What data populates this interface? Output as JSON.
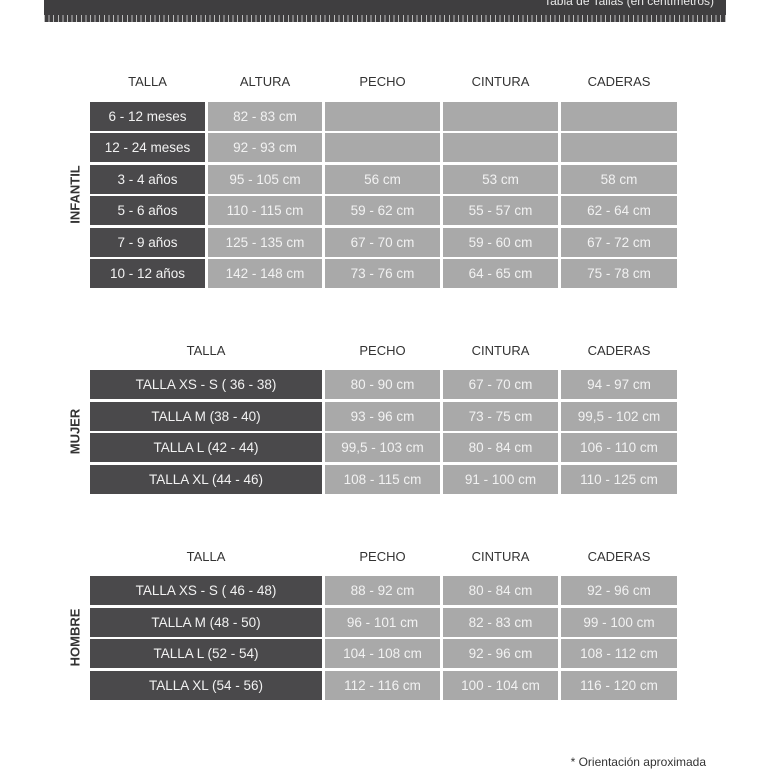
{
  "header": {
    "title": "Tabla de Tallas (en centímetros)"
  },
  "colors": {
    "dark_cell": "#4a494b",
    "light_cell": "#a9a9a9",
    "header_bar": "#3f3e40"
  },
  "infantil": {
    "label": "INFANTIL",
    "columns": [
      "TALLA",
      "ALTURA",
      "PECHO",
      "CINTURA",
      "CADERAS"
    ],
    "rows": [
      [
        "6 - 12 meses",
        "82 - 83 cm",
        "",
        "",
        ""
      ],
      [
        "12 - 24 meses",
        "92 - 93 cm",
        "",
        "",
        ""
      ],
      [
        "3 - 4 años",
        "95 - 105 cm",
        "56 cm",
        "53 cm",
        "58 cm"
      ],
      [
        "5 - 6 años",
        "110 - 115 cm",
        "59 - 62 cm",
        "55 - 57 cm",
        "62 - 64 cm"
      ],
      [
        "7 - 9 años",
        "125 - 135 cm",
        "67 - 70 cm",
        "59 - 60 cm",
        "67 - 72 cm"
      ],
      [
        "10 - 12 años",
        "142 - 148 cm",
        "73 - 76 cm",
        "64 - 65 cm",
        "75 - 78 cm"
      ]
    ]
  },
  "mujer": {
    "label": "MUJER",
    "columns": [
      "TALLA",
      "PECHO",
      "CINTURA",
      "CADERAS"
    ],
    "rows": [
      [
        "TALLA XS - S ( 36 - 38)",
        "80 - 90 cm",
        "67 - 70 cm",
        "94 - 97 cm"
      ],
      [
        "TALLA M (38 - 40)",
        "93 - 96 cm",
        "73 - 75 cm",
        "99,5 - 102 cm"
      ],
      [
        "TALLA L (42 - 44)",
        "99,5 - 103 cm",
        "80 - 84 cm",
        "106 - 110 cm"
      ],
      [
        "TALLA XL (44 - 46)",
        "108 - 115 cm",
        "91 - 100 cm",
        "110 - 125 cm"
      ]
    ]
  },
  "hombre": {
    "label": "HOMBRE",
    "columns": [
      "TALLA",
      "PECHO",
      "CINTURA",
      "CADERAS"
    ],
    "rows": [
      [
        "TALLA XS - S ( 46 - 48)",
        "88 - 92 cm",
        "80 - 84 cm",
        "92 - 96 cm"
      ],
      [
        "TALLA M (48 - 50)",
        "96 - 101 cm",
        "82 - 83 cm",
        "99 - 100 cm"
      ],
      [
        "TALLA L (52 - 54)",
        "104 - 108 cm",
        "92 - 96 cm",
        "108 - 112 cm"
      ],
      [
        "TALLA XL (54 - 56)",
        "112 - 116 cm",
        "100 - 104 cm",
        "116 - 120 cm"
      ]
    ]
  },
  "footnote": "* Orientación aproximada"
}
